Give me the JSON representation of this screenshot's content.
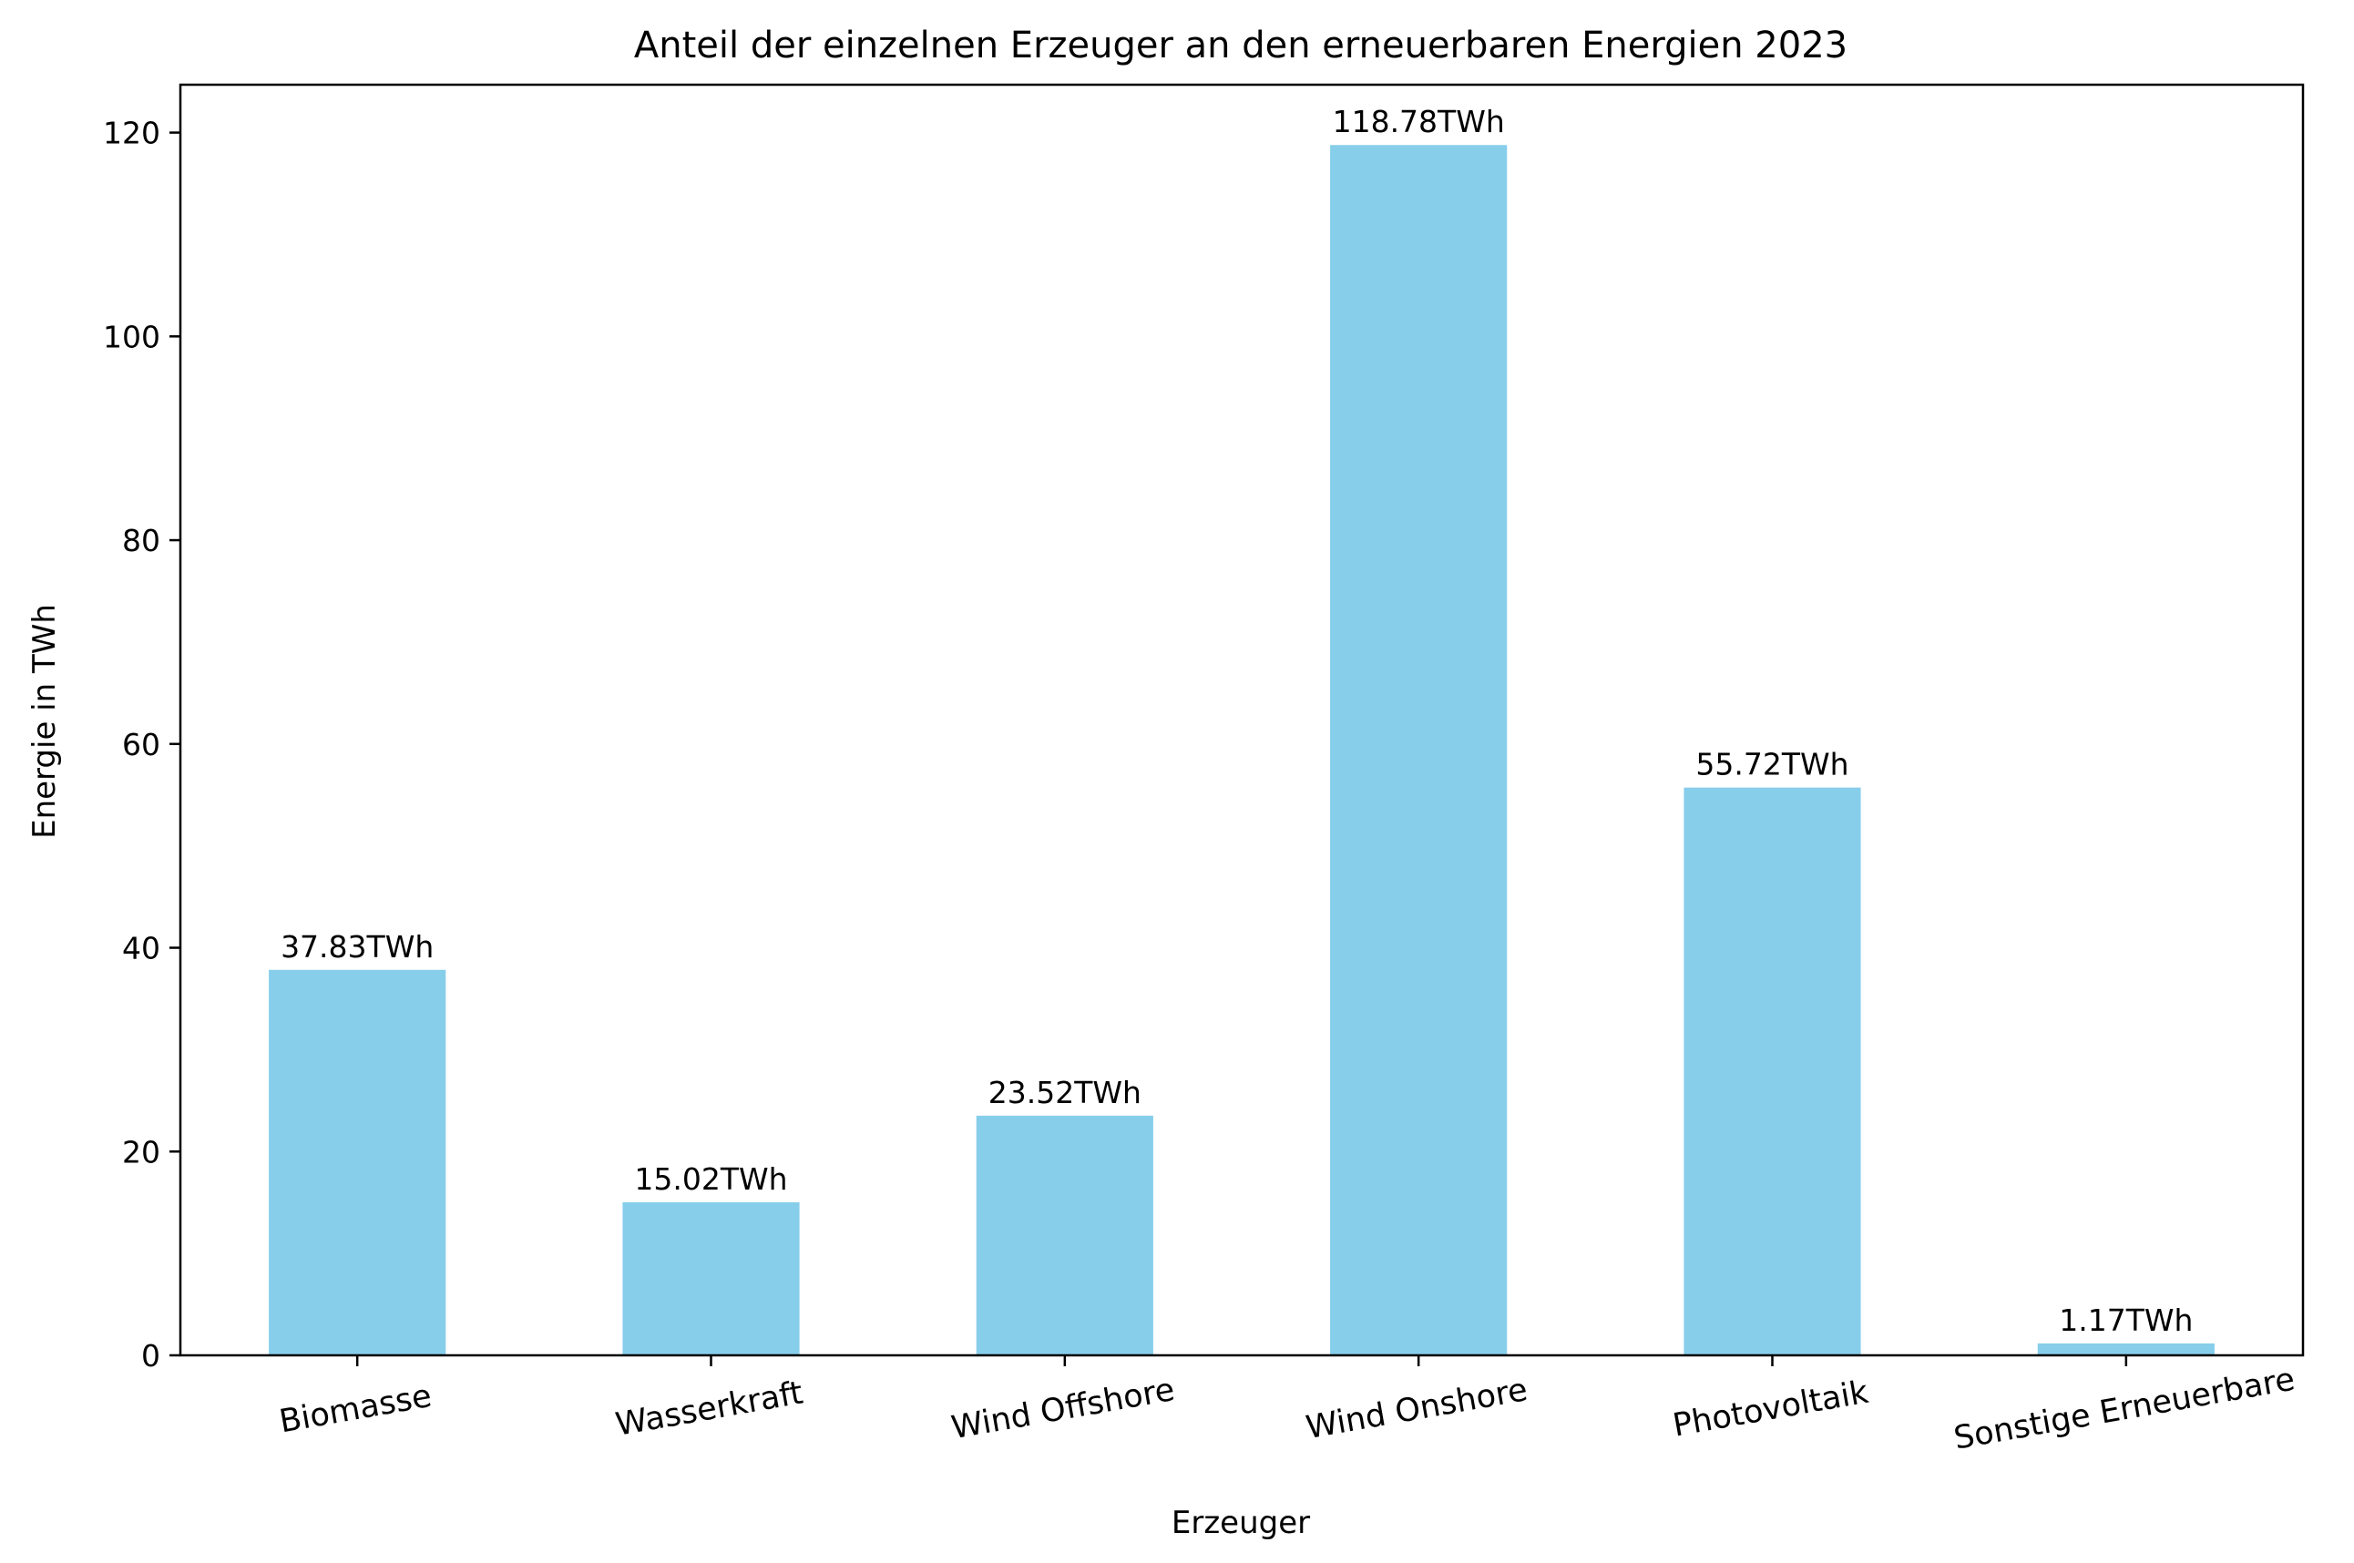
{
  "chart_data": {
    "type": "bar",
    "title": "Anteil der einzelnen Erzeuger an den erneuerbaren Energien 2023",
    "xlabel": "Erzeuger",
    "ylabel": "Energie in TWh",
    "categories": [
      "Biomasse",
      "Wasserkraft",
      "Wind Offshore",
      "Wind Onshore",
      "Photovoltaik",
      "Sonstige Erneuerbare"
    ],
    "values": [
      37.83,
      15.02,
      23.52,
      118.78,
      55.72,
      1.17
    ],
    "value_labels": [
      "37.83TWh",
      "15.02TWh",
      "23.52TWh",
      "118.78TWh",
      "55.72TWh",
      "1.17TWh"
    ],
    "yticks": [
      0,
      20,
      40,
      60,
      80,
      100,
      120
    ],
    "ytick_labels": [
      "0",
      "20",
      "40",
      "60",
      "80",
      "100",
      "120"
    ],
    "ylim": [
      0,
      124.7
    ],
    "bar_color": "#87CEEB",
    "grid": false,
    "legend": "none"
  }
}
